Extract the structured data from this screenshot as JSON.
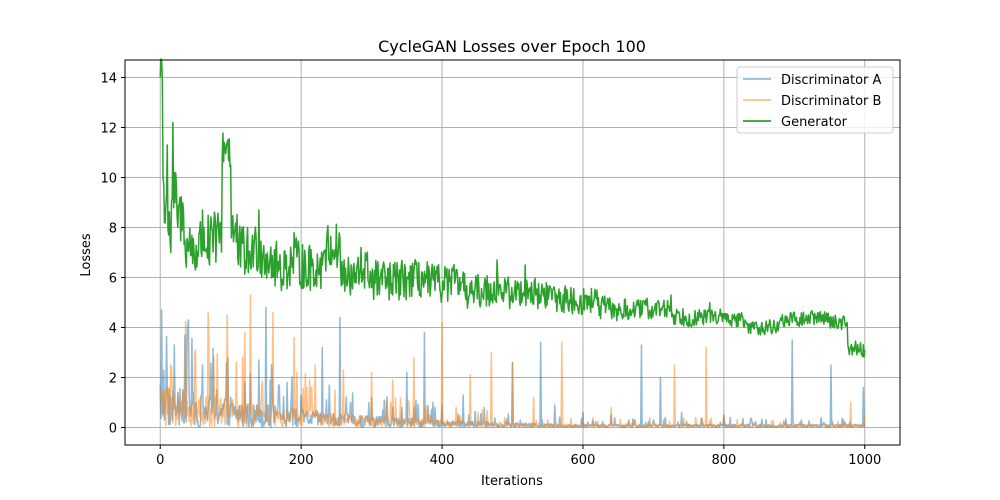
{
  "chart_data": {
    "type": "line",
    "title": "CycleGAN Losses over Epoch 100",
    "xlabel": "Iterations",
    "ylabel": "Losses",
    "xlim": [
      -50,
      1050
    ],
    "ylim": [
      -0.7,
      14.7
    ],
    "xticks": [
      0,
      200,
      400,
      600,
      800,
      1000
    ],
    "yticks": [
      0,
      2,
      4,
      6,
      8,
      10,
      12,
      14
    ],
    "grid": true,
    "legend_position": "top-right",
    "n_points": 1001,
    "series": [
      {
        "name": "Discriminator A",
        "color": "#1f77b4",
        "alpha": 0.5,
        "values": [
          {
            "x": 0,
            "y": 1.7
          },
          {
            "x": 2,
            "y": 4.7
          },
          {
            "x": 5,
            "y": 2.3
          },
          {
            "x": 10,
            "y": 1.5
          },
          {
            "x": 20,
            "y": 3.3
          },
          {
            "x": 30,
            "y": 0.6
          },
          {
            "x": 40,
            "y": 4.3
          },
          {
            "x": 60,
            "y": 2.5
          },
          {
            "x": 80,
            "y": 1.5
          },
          {
            "x": 100,
            "y": 1.2
          },
          {
            "x": 120,
            "y": 1.8
          },
          {
            "x": 140,
            "y": 2.7
          },
          {
            "x": 150,
            "y": 4.8
          },
          {
            "x": 180,
            "y": 1.8
          },
          {
            "x": 200,
            "y": 1.3
          },
          {
            "x": 230,
            "y": 3.2
          },
          {
            "x": 255,
            "y": 4.4
          },
          {
            "x": 270,
            "y": 1.0
          },
          {
            "x": 300,
            "y": 1.2
          },
          {
            "x": 330,
            "y": 0.8
          },
          {
            "x": 350,
            "y": 2.2
          },
          {
            "x": 375,
            "y": 3.8
          },
          {
            "x": 400,
            "y": 0.9
          },
          {
            "x": 430,
            "y": 1.3
          },
          {
            "x": 460,
            "y": 0.8
          },
          {
            "x": 500,
            "y": 2.6
          },
          {
            "x": 540,
            "y": 3.4
          },
          {
            "x": 560,
            "y": 0.9
          },
          {
            "x": 600,
            "y": 0.6
          },
          {
            "x": 640,
            "y": 0.5
          },
          {
            "x": 683,
            "y": 3.3
          },
          {
            "x": 700,
            "y": 0.3
          },
          {
            "x": 710,
            "y": 2.0
          },
          {
            "x": 740,
            "y": 0.6
          },
          {
            "x": 770,
            "y": 0.2
          },
          {
            "x": 800,
            "y": 0.5
          },
          {
            "x": 840,
            "y": 0.2
          },
          {
            "x": 860,
            "y": 0.3
          },
          {
            "x": 897,
            "y": 3.5
          },
          {
            "x": 910,
            "y": 0.3
          },
          {
            "x": 952,
            "y": 2.5
          },
          {
            "x": 970,
            "y": 0.3
          },
          {
            "x": 998,
            "y": 1.6
          },
          {
            "x": 1000,
            "y": 0.2
          }
        ]
      },
      {
        "name": "Discriminator B",
        "color": "#ff7f0e",
        "alpha": 0.5,
        "values": [
          {
            "x": 0,
            "y": 1.2
          },
          {
            "x": 15,
            "y": 2.5
          },
          {
            "x": 30,
            "y": 0.5
          },
          {
            "x": 50,
            "y": 3.1
          },
          {
            "x": 68,
            "y": 4.6
          },
          {
            "x": 95,
            "y": 4.5
          },
          {
            "x": 120,
            "y": 3.8
          },
          {
            "x": 128,
            "y": 5.3
          },
          {
            "x": 160,
            "y": 4.6
          },
          {
            "x": 190,
            "y": 3.6
          },
          {
            "x": 220,
            "y": 2.5
          },
          {
            "x": 260,
            "y": 2.3
          },
          {
            "x": 300,
            "y": 2.2
          },
          {
            "x": 330,
            "y": 1.9
          },
          {
            "x": 360,
            "y": 2.8
          },
          {
            "x": 385,
            "y": 0.5
          },
          {
            "x": 400,
            "y": 4.2
          },
          {
            "x": 420,
            "y": 0.8
          },
          {
            "x": 440,
            "y": 2.1
          },
          {
            "x": 470,
            "y": 3.0
          },
          {
            "x": 500,
            "y": 2.6
          },
          {
            "x": 530,
            "y": 1.2
          },
          {
            "x": 570,
            "y": 3.4
          },
          {
            "x": 600,
            "y": 0.3
          },
          {
            "x": 640,
            "y": 0.8
          },
          {
            "x": 670,
            "y": 0.2
          },
          {
            "x": 730,
            "y": 2.5
          },
          {
            "x": 760,
            "y": 0.4
          },
          {
            "x": 775,
            "y": 3.2
          },
          {
            "x": 800,
            "y": 0.5
          },
          {
            "x": 830,
            "y": 0.1
          },
          {
            "x": 880,
            "y": 0.2
          },
          {
            "x": 920,
            "y": 0.1
          },
          {
            "x": 950,
            "y": 0.1
          },
          {
            "x": 980,
            "y": 1.0
          },
          {
            "x": 1000,
            "y": 0.5
          }
        ]
      },
      {
        "name": "Generator",
        "color": "#2ca02c",
        "alpha": 1.0,
        "values": [
          {
            "x": 0,
            "y": 14.0
          },
          {
            "x": 3,
            "y": 13.9
          },
          {
            "x": 6,
            "y": 8.2
          },
          {
            "x": 10,
            "y": 11.3
          },
          {
            "x": 15,
            "y": 7.0
          },
          {
            "x": 18,
            "y": 12.2
          },
          {
            "x": 25,
            "y": 8.0
          },
          {
            "x": 35,
            "y": 7.5
          },
          {
            "x": 50,
            "y": 6.3
          },
          {
            "x": 60,
            "y": 8.7
          },
          {
            "x": 70,
            "y": 6.5
          },
          {
            "x": 88,
            "y": 10.8
          },
          {
            "x": 100,
            "y": 10.5
          },
          {
            "x": 110,
            "y": 6.8
          },
          {
            "x": 125,
            "y": 6.2
          },
          {
            "x": 140,
            "y": 8.7
          },
          {
            "x": 160,
            "y": 6.0
          },
          {
            "x": 175,
            "y": 5.7
          },
          {
            "x": 190,
            "y": 7.8
          },
          {
            "x": 210,
            "y": 5.7
          },
          {
            "x": 230,
            "y": 6.5
          },
          {
            "x": 255,
            "y": 7.6
          },
          {
            "x": 270,
            "y": 5.3
          },
          {
            "x": 285,
            "y": 7.2
          },
          {
            "x": 300,
            "y": 5.6
          },
          {
            "x": 330,
            "y": 5.3
          },
          {
            "x": 350,
            "y": 6.0
          },
          {
            "x": 380,
            "y": 5.4
          },
          {
            "x": 400,
            "y": 5.3
          },
          {
            "x": 425,
            "y": 6.0
          },
          {
            "x": 445,
            "y": 5.0
          },
          {
            "x": 478,
            "y": 6.7
          },
          {
            "x": 500,
            "y": 5.0
          },
          {
            "x": 518,
            "y": 6.5
          },
          {
            "x": 540,
            "y": 5.0
          },
          {
            "x": 560,
            "y": 5.5
          },
          {
            "x": 600,
            "y": 4.8
          },
          {
            "x": 620,
            "y": 5.5
          },
          {
            "x": 650,
            "y": 4.5
          },
          {
            "x": 680,
            "y": 4.8
          },
          {
            "x": 700,
            "y": 4.6
          },
          {
            "x": 725,
            "y": 5.3
          },
          {
            "x": 760,
            "y": 4.3
          },
          {
            "x": 780,
            "y": 5.0
          },
          {
            "x": 800,
            "y": 4.4
          },
          {
            "x": 830,
            "y": 4.3
          },
          {
            "x": 850,
            "y": 4.0
          },
          {
            "x": 880,
            "y": 4.3
          },
          {
            "x": 920,
            "y": 4.5
          },
          {
            "x": 950,
            "y": 4.4
          },
          {
            "x": 975,
            "y": 4.2
          },
          {
            "x": 1000,
            "y": 3.1
          }
        ]
      }
    ]
  }
}
